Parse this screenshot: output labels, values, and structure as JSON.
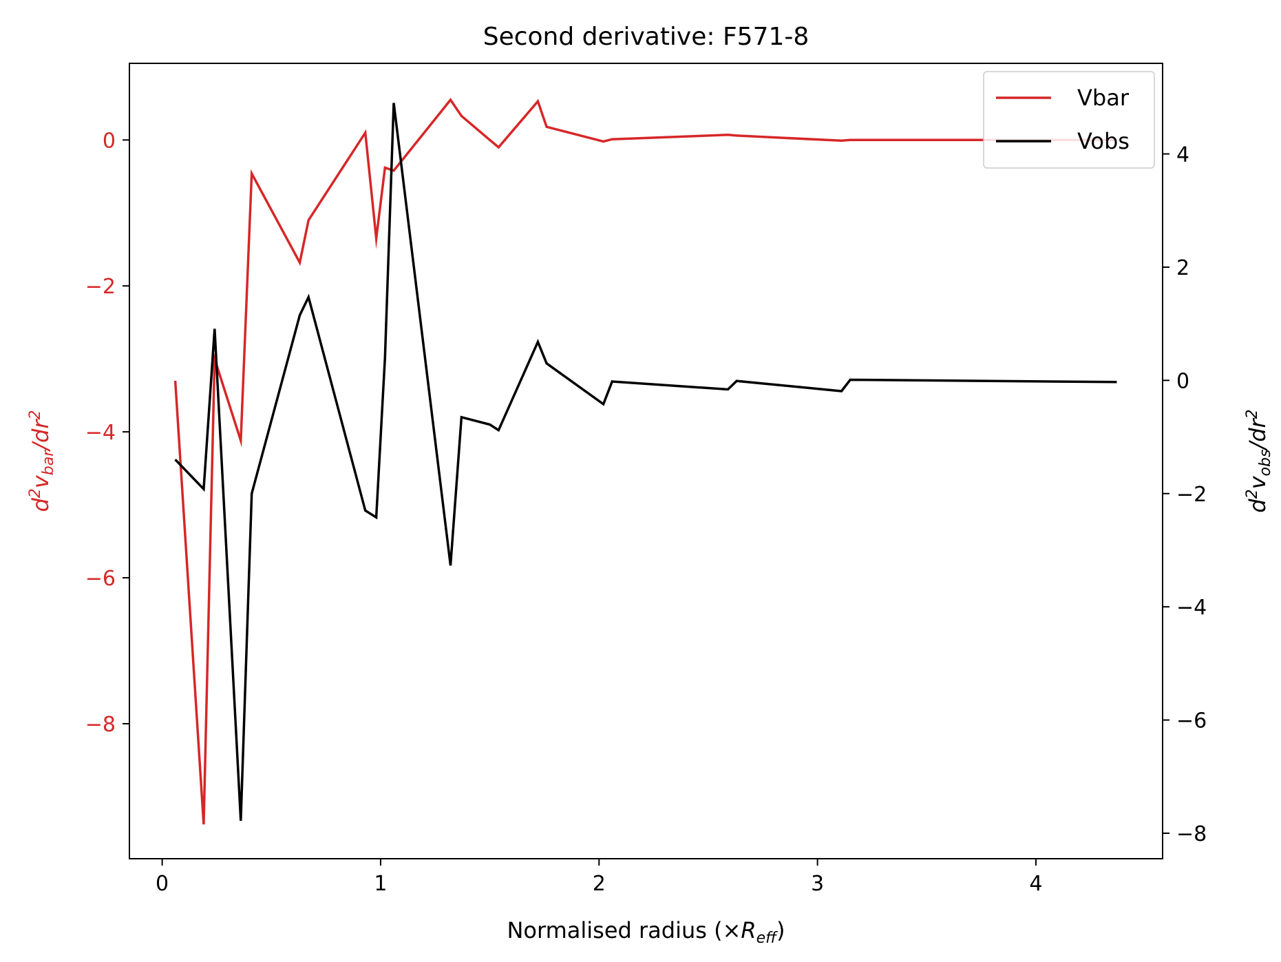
{
  "chart_data": {
    "type": "line",
    "title": "Second derivative: F571-8",
    "xlabel": {
      "prefix": "Normalised radius (×",
      "symbol": "R",
      "subscript": "eff",
      "suffix": ")"
    },
    "ylabel_left": {
      "base": "d",
      "sup1": "2",
      "mid": "v",
      "sub": "bar",
      "tail": "/dr",
      "sup2": "2"
    },
    "ylabel_right": {
      "base": "d",
      "sup1": "2",
      "mid": "v",
      "sub": "obs",
      "tail": "/dr",
      "sup2": "2"
    },
    "xlim": [
      -0.15,
      4.58
    ],
    "ylim_left": [
      -9.85,
      1.05
    ],
    "ylim_right": [
      -8.45,
      5.6
    ],
    "x_ticks": [
      0,
      1,
      2,
      3,
      4
    ],
    "x_tick_labels": [
      "0",
      "1",
      "2",
      "3",
      "4"
    ],
    "y_left_ticks": [
      0,
      -2,
      -4,
      -6,
      -8
    ],
    "y_left_tick_labels": [
      "0",
      "−2",
      "−4",
      "−6",
      "−8"
    ],
    "y_right_ticks": [
      4,
      2,
      0,
      -2,
      -4,
      -6,
      -8
    ],
    "y_right_tick_labels": [
      "4",
      "2",
      "0",
      "−2",
      "−4",
      "−6",
      "−8"
    ],
    "grid": false,
    "legend_position": "top-right",
    "colors": {
      "vbar": "#d62728",
      "vobs": "#000000",
      "left_axis": "#d62728",
      "right_axis": "#000000"
    },
    "series": [
      {
        "name": "Vbar",
        "axis": "left",
        "x": [
          0.06,
          0.19,
          0.24,
          0.36,
          0.41,
          0.63,
          0.67,
          0.93,
          0.98,
          1.02,
          1.06,
          1.32,
          1.37,
          1.5,
          1.54,
          1.72,
          1.76,
          2.02,
          2.06,
          2.59,
          2.63,
          3.11,
          3.15,
          4.37
        ],
        "y": [
          -3.3,
          -9.38,
          -3.0,
          -4.12,
          -0.46,
          -1.68,
          -1.1,
          0.1,
          -1.35,
          -0.38,
          -0.42,
          0.55,
          0.33,
          0.0,
          -0.1,
          0.53,
          0.18,
          -0.02,
          0.01,
          0.07,
          0.06,
          -0.01,
          0.0,
          0.0
        ]
      },
      {
        "name": "Vobs",
        "axis": "right",
        "x": [
          0.06,
          0.19,
          0.24,
          0.36,
          0.41,
          0.63,
          0.67,
          0.93,
          0.98,
          1.02,
          1.06,
          1.32,
          1.37,
          1.5,
          1.54,
          1.72,
          1.76,
          2.02,
          2.06,
          2.59,
          2.63,
          3.11,
          3.15,
          4.37
        ],
        "y": [
          -1.4,
          -1.92,
          0.91,
          -7.78,
          -2.0,
          1.15,
          1.47,
          -2.3,
          -2.42,
          0.4,
          4.9,
          -3.27,
          -0.65,
          -0.78,
          -0.88,
          0.68,
          0.3,
          -0.42,
          -0.02,
          -0.16,
          -0.01,
          -0.19,
          0.01,
          -0.03
        ]
      }
    ]
  }
}
